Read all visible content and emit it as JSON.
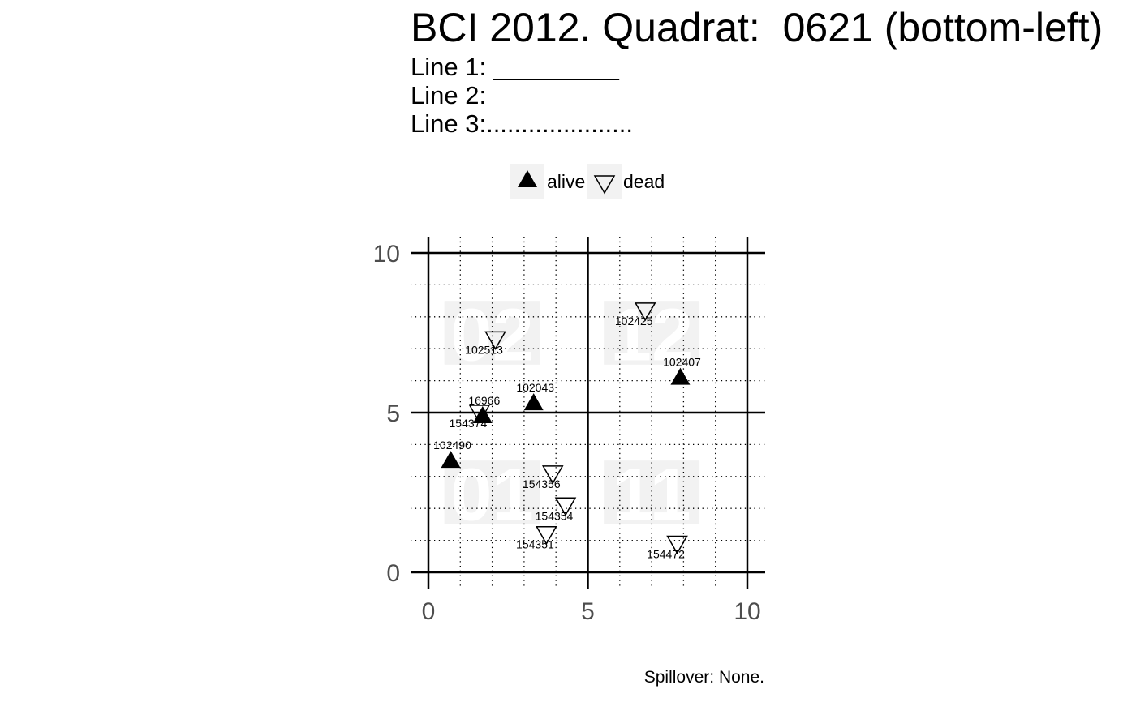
{
  "header": {
    "title": "BCI 2012. Quadrat:  0621 (bottom-left)",
    "line1": "Line 1: _________",
    "line2": "Line 2:",
    "line3": "Line 3:....................."
  },
  "legend": {
    "alive": "alive",
    "dead": "dead"
  },
  "caption": "Spillover: None.",
  "chart_data": {
    "type": "scatter",
    "title": "BCI 2012. Quadrat:  0621 (bottom-left)",
    "xlabel": "",
    "ylabel": "",
    "xlim": [
      0,
      10
    ],
    "ylim": [
      0,
      10
    ],
    "x_ticks": [
      0,
      5,
      10
    ],
    "y_ticks": [
      0,
      5,
      10
    ],
    "minor_grid": true,
    "legend_position": "top",
    "series": [
      {
        "name": "alive",
        "marker": "filled-triangle-up",
        "points": [
          {
            "tag": "102407",
            "x": 7.9,
            "y": 6.1
          },
          {
            "tag": "102043",
            "x": 3.3,
            "y": 5.3
          },
          {
            "tag": "16966",
            "x": 1.7,
            "y": 4.9
          },
          {
            "tag": "102490",
            "x": 0.7,
            "y": 3.5
          }
        ]
      },
      {
        "name": "dead",
        "marker": "open-triangle-down",
        "points": [
          {
            "tag": "102425",
            "x": 6.8,
            "y": 8.2
          },
          {
            "tag": "102513",
            "x": 2.1,
            "y": 7.3
          },
          {
            "tag": "154374",
            "x": 1.6,
            "y": 5.0
          },
          {
            "tag": "154356",
            "x": 3.9,
            "y": 3.1
          },
          {
            "tag": "154354",
            "x": 4.3,
            "y": 2.1
          },
          {
            "tag": "154351",
            "x": 3.7,
            "y": 1.2
          },
          {
            "tag": "154472",
            "x": 7.8,
            "y": 0.9
          }
        ]
      }
    ],
    "subquadrats": [
      {
        "label": "02",
        "x": 2,
        "y": 7.5
      },
      {
        "label": "12",
        "x": 7,
        "y": 7.5
      },
      {
        "label": "01",
        "x": 2,
        "y": 2.5
      },
      {
        "label": "11",
        "x": 7,
        "y": 2.5
      }
    ]
  }
}
